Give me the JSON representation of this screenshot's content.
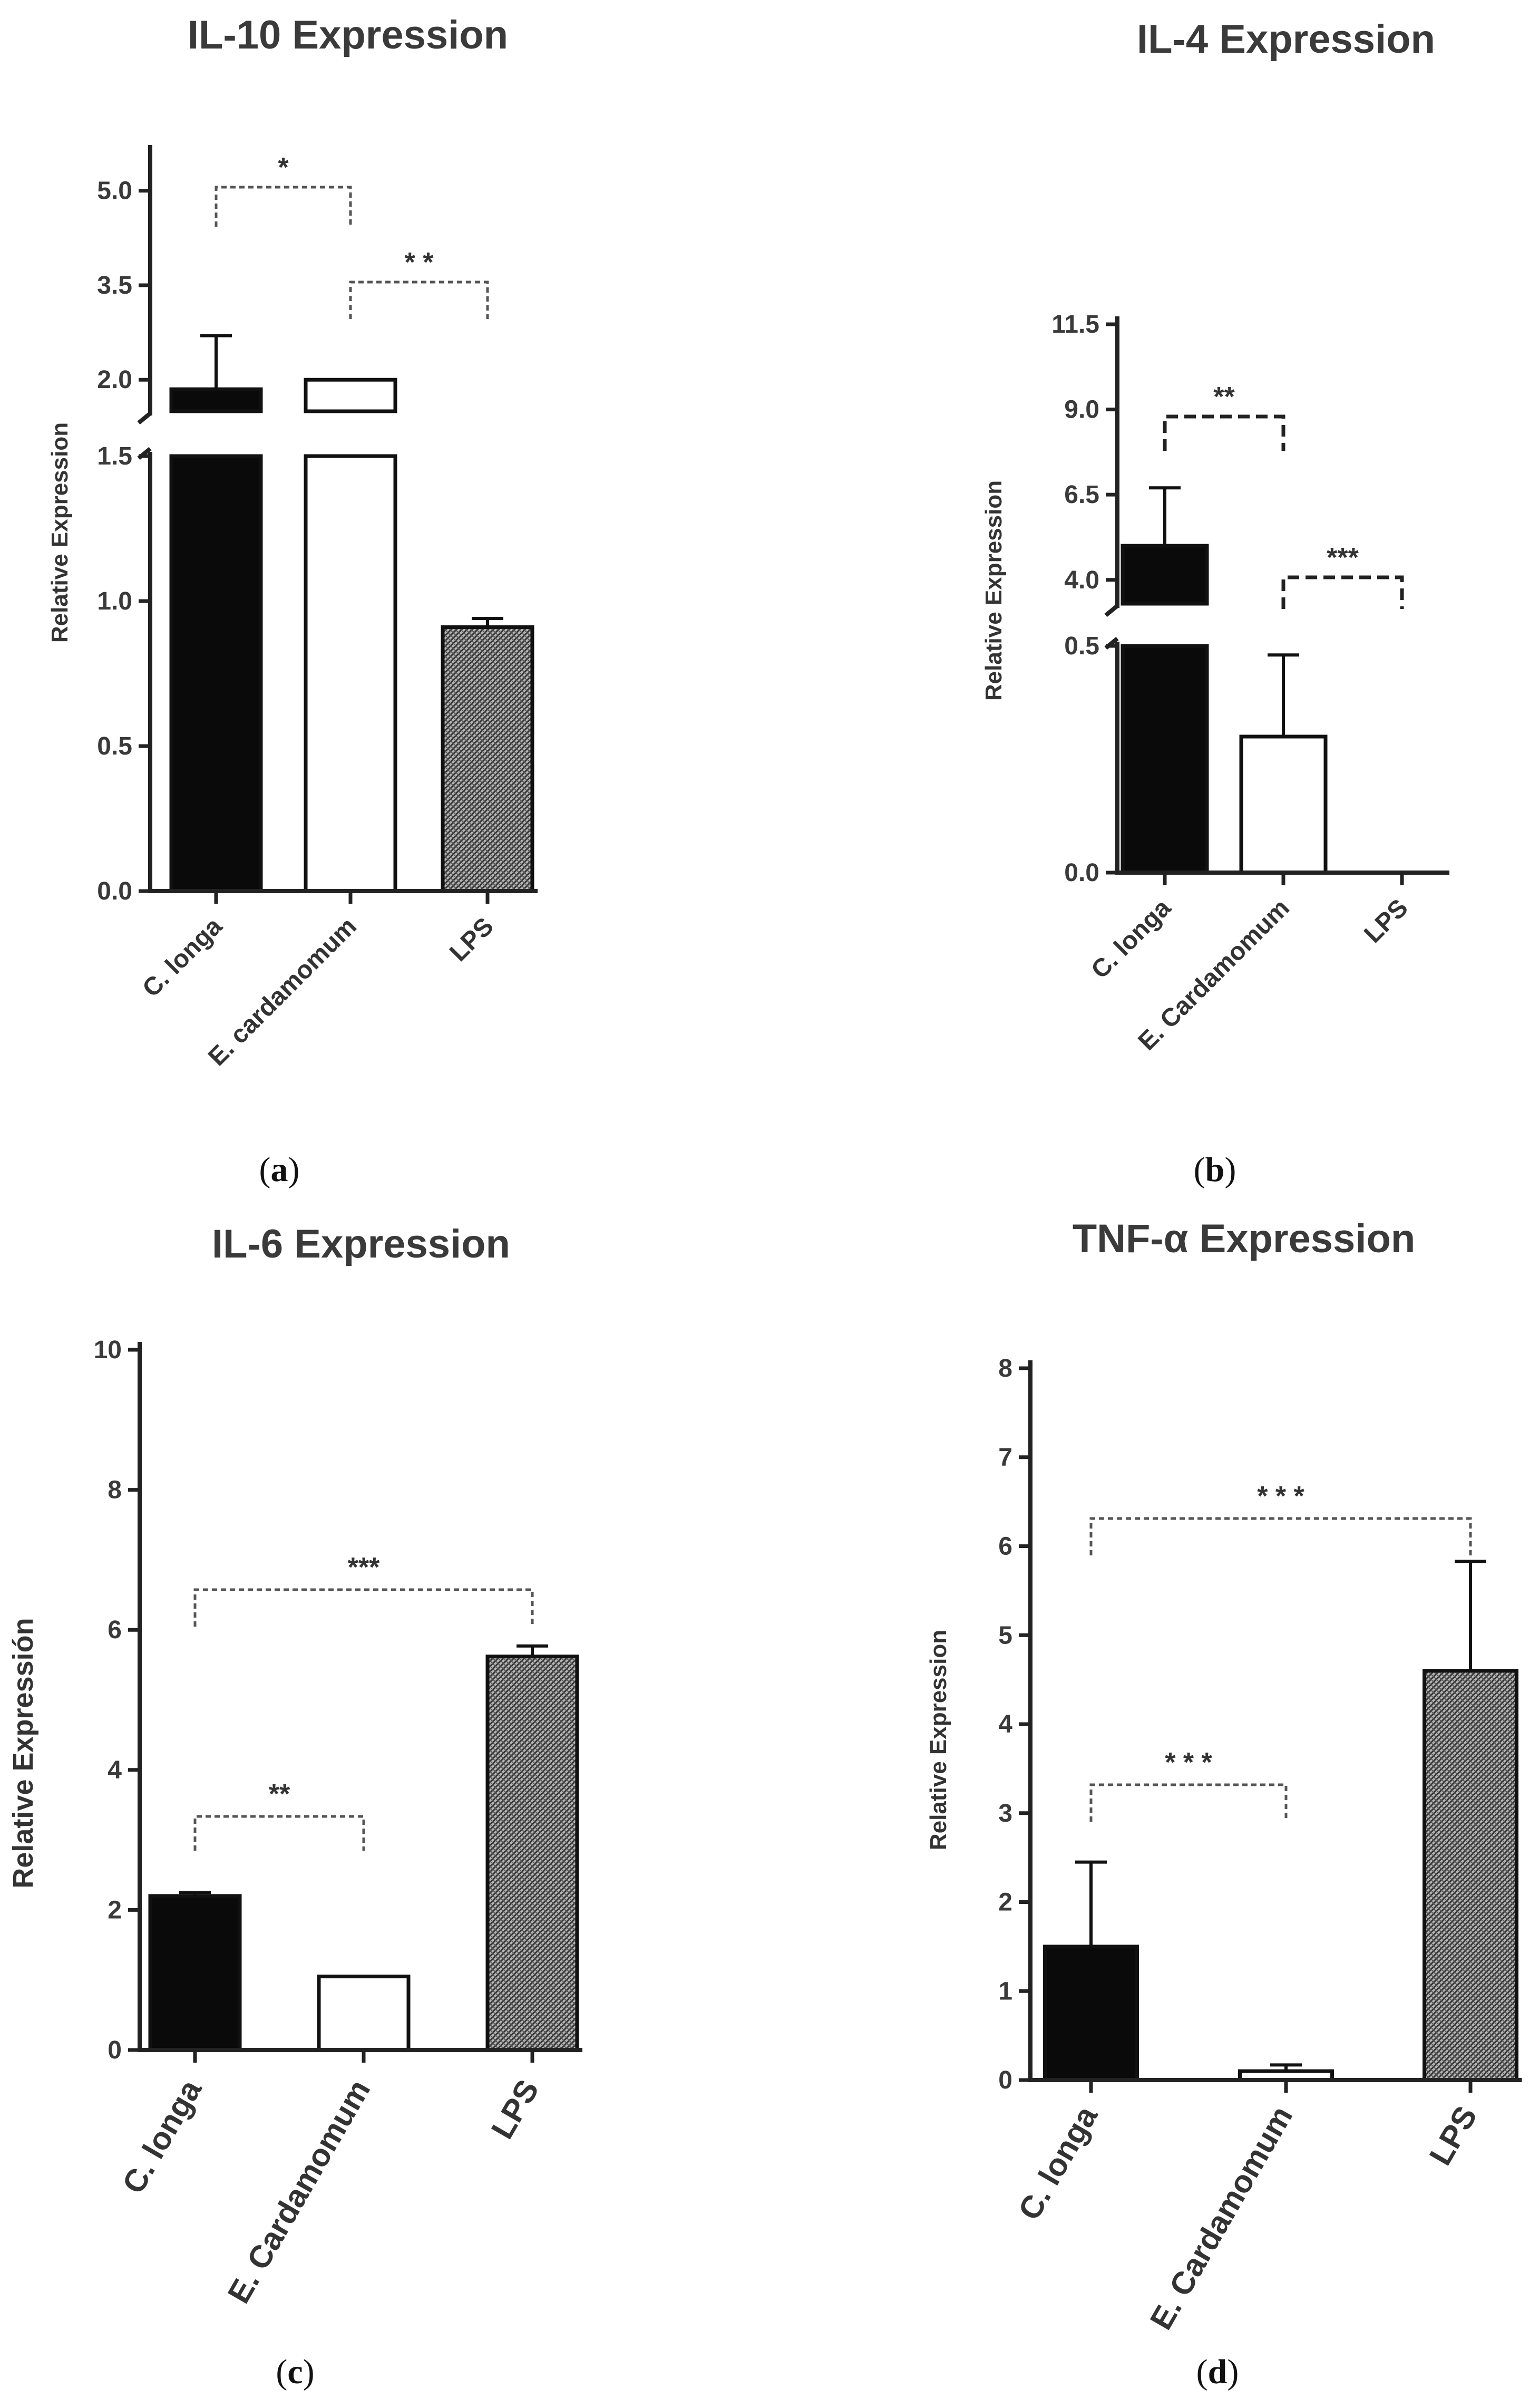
{
  "colors": {
    "black_bar": "#0a0a0a",
    "white_bar": "#ffffff",
    "hatched_bar": "#8c8c8c",
    "axis": "#222222",
    "bracket": "#555555"
  },
  "chart_data": [
    {
      "id": "a",
      "type": "bar",
      "title": "IL-10 Expression",
      "ylabel": "Relative Expression",
      "xlabel": "",
      "caption": "a",
      "categories": [
        "C. longa",
        "E. cardamomum",
        "LPS"
      ],
      "values": [
        1.85,
        2.0,
        0.91
      ],
      "errors": [
        0.85,
        0.0,
        0.03
      ],
      "bar_styles": [
        "black",
        "white",
        "hatched"
      ],
      "broken_axis": true,
      "lower_segment": {
        "ylim": [
          0,
          1.5
        ],
        "ticks": [
          "0.0",
          "0.5",
          "1.0",
          "1.5"
        ]
      },
      "upper_segment": {
        "ylim": [
          1.5,
          5.6
        ],
        "ticks": [
          "2.0",
          "3.5",
          "5.0"
        ]
      },
      "significance": [
        {
          "from": 0,
          "to": 1,
          "label": "*"
        },
        {
          "from": 1,
          "to": 2,
          "label": "* *"
        }
      ]
    },
    {
      "id": "b",
      "type": "bar",
      "title": "IL-4 Expression",
      "ylabel": "Relative Expression",
      "xlabel": "",
      "caption": "b",
      "categories": [
        "C. longa",
        "E. Cardamomum",
        "LPS"
      ],
      "values": [
        5.0,
        0.3,
        0.0
      ],
      "errors": [
        1.7,
        0.18,
        0.0
      ],
      "bar_styles": [
        "black",
        "white",
        "hatched"
      ],
      "broken_axis": true,
      "lower_segment": {
        "ylim": [
          0,
          0.5
        ],
        "ticks": [
          "0.0",
          "0.5"
        ]
      },
      "upper_segment": {
        "ylim": [
          3.3,
          11.5
        ],
        "ticks": [
          "4.0",
          "6.5",
          "9.0",
          "11.5"
        ]
      },
      "significance": [
        {
          "from": 0,
          "to": 1,
          "label": "**"
        },
        {
          "from": 1,
          "to": 2,
          "label": "***"
        }
      ]
    },
    {
      "id": "c",
      "type": "bar",
      "title": "IL-6 Expression",
      "ylabel": "Relative Expressión",
      "xlabel": "",
      "caption": "c",
      "categories": [
        "C. longa",
        "E. Cardamomum",
        "LPS"
      ],
      "values": [
        2.2,
        1.05,
        5.62
      ],
      "errors": [
        0.05,
        0.0,
        0.15
      ],
      "bar_styles": [
        "black",
        "white",
        "hatched"
      ],
      "broken_axis": false,
      "ylim": [
        0,
        10
      ],
      "ticks": [
        "0",
        "2",
        "4",
        "6",
        "8",
        "10"
      ],
      "significance": [
        {
          "from": 0,
          "to": 2,
          "label": "***"
        },
        {
          "from": 0,
          "to": 1,
          "label": "**"
        }
      ]
    },
    {
      "id": "d",
      "type": "bar",
      "title": "TNF-α Expression",
      "ylabel": "Relative Expression",
      "xlabel": "",
      "caption": "d",
      "categories": [
        "C. longa",
        "E. Cardamomum",
        "LPS"
      ],
      "values": [
        1.5,
        0.1,
        4.6
      ],
      "errors": [
        0.95,
        0.07,
        1.23
      ],
      "bar_styles": [
        "black",
        "white",
        "hatched"
      ],
      "broken_axis": false,
      "ylim": [
        0,
        8
      ],
      "ticks": [
        "0",
        "1",
        "2",
        "3",
        "4",
        "5",
        "6",
        "7",
        "8"
      ],
      "significance": [
        {
          "from": 0,
          "to": 2,
          "label": "* * *"
        },
        {
          "from": 0,
          "to": 1,
          "label": "* * *"
        }
      ]
    }
  ]
}
